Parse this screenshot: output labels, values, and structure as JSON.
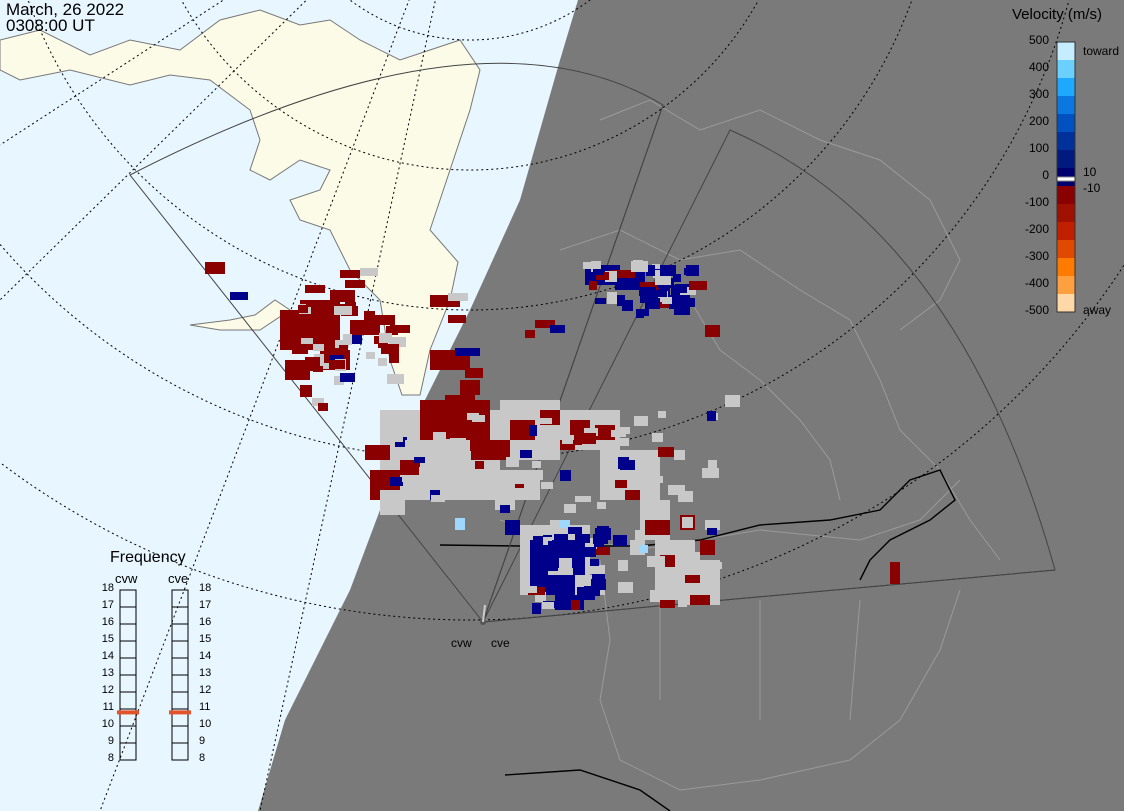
{
  "timestamp": {
    "date": "March, 26 2022",
    "time": "0308:00 UT"
  },
  "colorbar": {
    "title": "Velocity (m/s)",
    "ticks": [
      "500",
      "400",
      "300",
      "200",
      "100",
      "0",
      "-100",
      "-200",
      "-300",
      "-400",
      "-500"
    ],
    "near_zero_ticks": [
      "10",
      "-10"
    ],
    "toward_label": "toward",
    "away_label": "away",
    "colors": [
      "#c6ecff",
      "#6cd0ff",
      "#1ea8ff",
      "#0a78e0",
      "#0050c0",
      "#003099",
      "#001a80",
      "#00006e",
      "#8a0000",
      "#a01000",
      "#c02000",
      "#e04a00",
      "#ff7a00",
      "#ffa040",
      "#ffd8a8"
    ]
  },
  "frequency": {
    "title": "Frequency",
    "radars": [
      {
        "name": "cvw",
        "selected_mhz": 10.8
      },
      {
        "name": "cve",
        "selected_mhz": 10.8
      }
    ],
    "scale": [
      "18",
      "17",
      "16",
      "15",
      "14",
      "13",
      "12",
      "11",
      "10",
      "9",
      "8"
    ],
    "marker_color": "#e2532a"
  },
  "sites": [
    "cvw",
    "cve"
  ],
  "colors": {
    "ocean": "#e8f6ff",
    "land": "#fbfbe8",
    "night": "#7a7a7a",
    "ground_scatter": "#c8c8c8"
  }
}
